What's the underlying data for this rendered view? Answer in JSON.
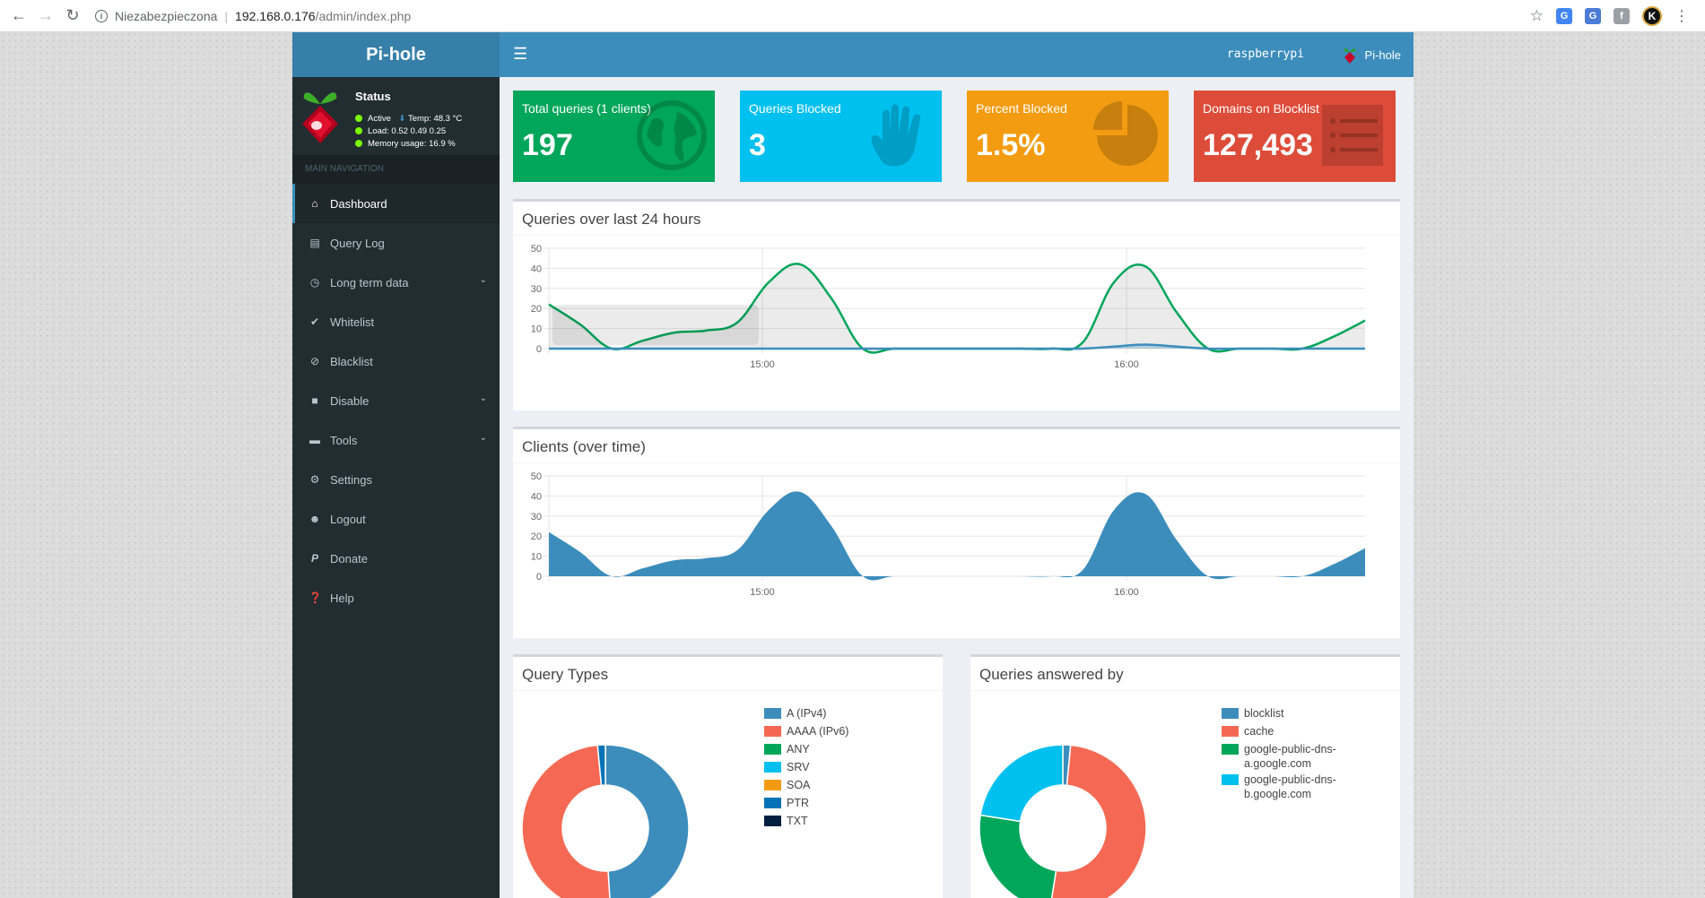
{
  "browser": {
    "security_label": "Niezabezpieczona",
    "url_host": "192.168.0.176",
    "url_path": "/admin/index.php",
    "profile_initial": "K"
  },
  "header": {
    "logo": "Pi-hole",
    "hostname": "raspberrypi",
    "user": "Pi-hole"
  },
  "status": {
    "title": "Status",
    "active": "Active",
    "temp": "Temp: 48.3 °C",
    "load": "Load:  0.52  0.49  0.25",
    "memory": "Memory usage:  16.9 %"
  },
  "sidebar": {
    "header": "MAIN NAVIGATION",
    "items": [
      {
        "label": "Dashboard",
        "icon": "home-icon"
      },
      {
        "label": "Query Log",
        "icon": "file-icon"
      },
      {
        "label": "Long term data",
        "icon": "clock-icon"
      },
      {
        "label": "Whitelist",
        "icon": "check-circle-icon"
      },
      {
        "label": "Blacklist",
        "icon": "ban-icon"
      },
      {
        "label": "Disable",
        "icon": "stop-icon"
      },
      {
        "label": "Tools",
        "icon": "folder-icon"
      },
      {
        "label": "Settings",
        "icon": "gears-icon"
      },
      {
        "label": "Logout",
        "icon": "user-times-icon"
      },
      {
        "label": "Donate",
        "icon": "paypal-icon"
      },
      {
        "label": "Help",
        "icon": "question-icon"
      }
    ]
  },
  "stats": [
    {
      "label": "Total queries (1 clients)",
      "value": "197",
      "color": "#00a65a",
      "icon": "globe-icon"
    },
    {
      "label": "Queries Blocked",
      "value": "3",
      "color": "#00c0ef",
      "icon": "hand-icon"
    },
    {
      "label": "Percent Blocked",
      "value": "1.5%",
      "color": "#f39c12",
      "icon": "pie-chart-icon"
    },
    {
      "label": "Domains on Blocklist",
      "value": "127,493",
      "color": "#dd4b39",
      "icon": "list-icon"
    }
  ],
  "panels": {
    "queries_title": "Queries over last 24 hours",
    "clients_title": "Clients (over time)",
    "types_title": "Query Types",
    "answered_title": "Queries answered by"
  },
  "chart_data": [
    {
      "type": "line",
      "title": "Queries over last 24 hours",
      "ylim": [
        0,
        50
      ],
      "yticks": [
        "50",
        "40",
        "30",
        "20",
        "10",
        "0"
      ],
      "xtick_labels": [
        "15:00",
        "16:00"
      ],
      "x": [
        0,
        1,
        2,
        3,
        4,
        5,
        6,
        7,
        8,
        9,
        10,
        11,
        12,
        13,
        14,
        15,
        16,
        17,
        18,
        19,
        20,
        21,
        22,
        23,
        24,
        25,
        26
      ],
      "series": [
        {
          "color": "#00a65a",
          "values": [
            22,
            12,
            0,
            4,
            8,
            9,
            13,
            33,
            42,
            25,
            0,
            0,
            0,
            0,
            0,
            0,
            0,
            3,
            33,
            41,
            18,
            0,
            0,
            0,
            0,
            6,
            14
          ]
        },
        {
          "color": "#3c8dbc",
          "values": [
            0,
            0,
            0,
            0,
            0,
            0,
            0,
            0,
            0,
            0,
            0,
            0,
            0,
            0,
            0,
            0,
            0,
            0,
            1,
            2,
            1,
            0,
            0,
            0,
            0,
            0,
            0
          ]
        }
      ],
      "grid": true
    },
    {
      "type": "area",
      "title": "Clients (over time)",
      "ylim": [
        0,
        50
      ],
      "yticks": [
        "50",
        "40",
        "30",
        "20",
        "10",
        "0"
      ],
      "xtick_labels": [
        "15:00",
        "16:00"
      ],
      "x": [
        0,
        1,
        2,
        3,
        4,
        5,
        6,
        7,
        8,
        9,
        10,
        11,
        12,
        13,
        14,
        15,
        16,
        17,
        18,
        19,
        20,
        21,
        22,
        23,
        24,
        25,
        26
      ],
      "series": [
        {
          "color": "#3c8dbc",
          "values": [
            22,
            12,
            0,
            4,
            8,
            9,
            13,
            33,
            42,
            25,
            0,
            0,
            0,
            0,
            0,
            0,
            0,
            3,
            33,
            41,
            18,
            0,
            0,
            0,
            0,
            6,
            14
          ]
        }
      ],
      "grid": true
    },
    {
      "type": "pie",
      "title": "Query Types",
      "categories": [
        "A (IPv4)",
        "AAAA (IPv6)",
        "ANY",
        "SRV",
        "SOA",
        "PTR",
        "TXT"
      ],
      "values": [
        49,
        49.5,
        0,
        0,
        0,
        1.5,
        0
      ],
      "colors": [
        "#3c8dbc",
        "#f56954",
        "#00a65a",
        "#00c0ef",
        "#f39c12",
        "#0073b7",
        "#001f3f"
      ],
      "legend": "right"
    },
    {
      "type": "pie",
      "title": "Queries answered by",
      "categories": [
        "blocklist",
        "cache",
        "google-public-dns-a.google.com",
        "google-public-dns-b.google.com"
      ],
      "legend_lines": [
        [
          "blocklist"
        ],
        [
          "cache"
        ],
        [
          "google-public-dns-",
          "a.google.com"
        ],
        [
          "google-public-dns-",
          "b.google.com"
        ]
      ],
      "values": [
        1.5,
        51,
        25,
        22.5
      ],
      "colors": [
        "#3c8dbc",
        "#f56954",
        "#00a65a",
        "#00c0ef"
      ],
      "legend": "right"
    }
  ]
}
